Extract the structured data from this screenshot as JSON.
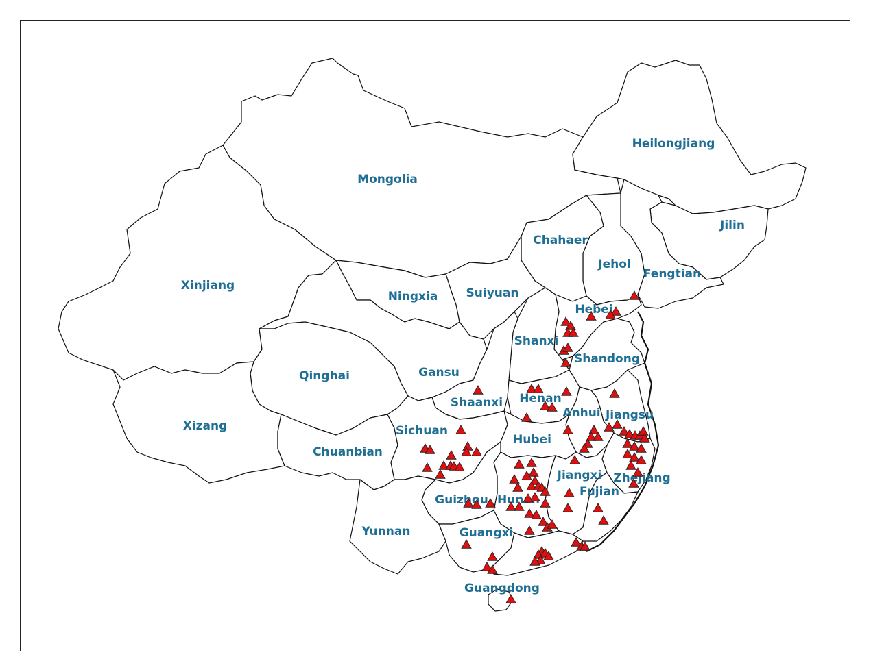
{
  "map": {
    "colors": {
      "label": "#1f6f95",
      "marker_fill": "#e01010",
      "marker_stroke": "#222222",
      "border": "#111111"
    },
    "marker_icon": "red-triangle-icon",
    "provinces": [
      {
        "id": "mongolia",
        "name": "Mongolia"
      },
      {
        "id": "xinjiang",
        "name": "Xinjiang"
      },
      {
        "id": "heilongjiang",
        "name": "Heilongjiang"
      },
      {
        "id": "jilin",
        "name": "Jilin"
      },
      {
        "id": "fengtian",
        "name": "Fengtian"
      },
      {
        "id": "jehol",
        "name": "Jehol"
      },
      {
        "id": "chahaer",
        "name": "Chahaer"
      },
      {
        "id": "suiyuan",
        "name": "Suiyuan"
      },
      {
        "id": "ningxia",
        "name": "Ningxia"
      },
      {
        "id": "hebei",
        "name": "Hebei"
      },
      {
        "id": "shanxi",
        "name": "Shanxi"
      },
      {
        "id": "shandong",
        "name": "Shandong"
      },
      {
        "id": "gansu",
        "name": "Gansu"
      },
      {
        "id": "qinghai",
        "name": "Qinghai"
      },
      {
        "id": "shaanxi",
        "name": "Shaanxi"
      },
      {
        "id": "henan",
        "name": "Henan"
      },
      {
        "id": "jiangsu",
        "name": "Jiangsu"
      },
      {
        "id": "anhui",
        "name": "Anhui"
      },
      {
        "id": "xizang",
        "name": "Xizang"
      },
      {
        "id": "chuanbian",
        "name": "Chuanbian"
      },
      {
        "id": "sichuan",
        "name": "Sichuan"
      },
      {
        "id": "hubei",
        "name": "Hubei"
      },
      {
        "id": "zhejiang",
        "name": "Zhejiang"
      },
      {
        "id": "jiangxi",
        "name": "Jiangxi"
      },
      {
        "id": "fujian",
        "name": "Fujian"
      },
      {
        "id": "hunan",
        "name": "Hunan"
      },
      {
        "id": "guizhou",
        "name": "Guizhou"
      },
      {
        "id": "yunnan",
        "name": "Yunnan"
      },
      {
        "id": "guangxi",
        "name": "Guangxi"
      },
      {
        "id": "guangdong",
        "name": "Guangdong"
      }
    ]
  }
}
